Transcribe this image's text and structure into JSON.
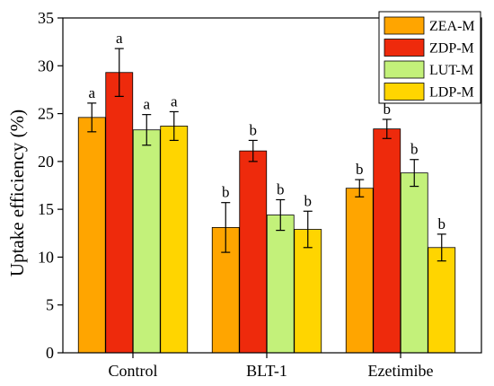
{
  "chart_data": {
    "type": "bar",
    "ylabel": "Uptake efficiency (%)",
    "xlabel": "",
    "ylim": [
      0,
      35
    ],
    "yticks": [
      "0",
      "5",
      "10",
      "15",
      "20",
      "25",
      "30",
      "35"
    ],
    "grid": false,
    "legend_position": "top-right",
    "categories": [
      "Control",
      "BLT-1",
      "Ezetimibe"
    ],
    "series": [
      {
        "name": "ZEA-M",
        "color": "#FFA500",
        "values": [
          24.6,
          13.1,
          17.2
        ],
        "errors": [
          1.5,
          2.6,
          0.9
        ],
        "labels": [
          "a",
          "b",
          "b"
        ]
      },
      {
        "name": "ZDP-M",
        "color": "#EE2A0C",
        "values": [
          29.3,
          21.1,
          23.4
        ],
        "errors": [
          2.5,
          1.1,
          1.0
        ],
        "labels": [
          "a",
          "b",
          "b"
        ]
      },
      {
        "name": "LUT-M",
        "color": "#C3F17A",
        "values": [
          23.3,
          14.4,
          18.8
        ],
        "errors": [
          1.6,
          1.6,
          1.4
        ],
        "labels": [
          "a",
          "b",
          "b"
        ]
      },
      {
        "name": "LDP-M",
        "color": "#FFD500",
        "values": [
          23.7,
          12.9,
          11.0
        ],
        "errors": [
          1.5,
          1.9,
          1.4
        ],
        "labels": [
          "a",
          "b",
          "b"
        ]
      }
    ]
  }
}
